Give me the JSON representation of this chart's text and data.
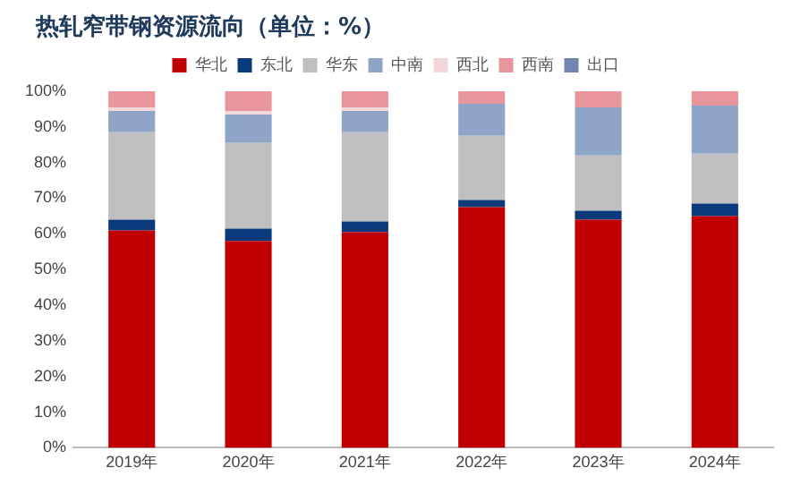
{
  "chart_data": {
    "type": "bar",
    "title": "热轧窄带钢资源流向（单位：%）",
    "categories": [
      "2019年",
      "2020年",
      "2021年",
      "2022年",
      "2023年",
      "2024年"
    ],
    "stacked": true,
    "legend": "top",
    "grid": false,
    "ylim": [
      0,
      100
    ],
    "yticks": [
      {
        "value": 0,
        "label": "0%"
      },
      {
        "value": 10,
        "label": "10%"
      },
      {
        "value": 20,
        "label": "20%"
      },
      {
        "value": 30,
        "label": "30%"
      },
      {
        "value": 40,
        "label": "40%"
      },
      {
        "value": 50,
        "label": "50%"
      },
      {
        "value": 60,
        "label": "60%"
      },
      {
        "value": 70,
        "label": "70%"
      },
      {
        "value": 80,
        "label": "80%"
      },
      {
        "value": 90,
        "label": "90%"
      },
      {
        "value": 100,
        "label": "100%"
      }
    ],
    "series": [
      {
        "name": "华北",
        "color": "#c00000",
        "values": [
          61,
          58,
          60.5,
          67.5,
          64,
          65
        ]
      },
      {
        "name": "东北",
        "color": "#0b3a7c",
        "values": [
          3,
          3.5,
          3,
          2,
          2.5,
          3.5
        ]
      },
      {
        "name": "华东",
        "color": "#bfbfbf",
        "values": [
          24.5,
          24,
          25,
          18,
          15.5,
          14
        ]
      },
      {
        "name": "中南",
        "color": "#8ea5c8",
        "values": [
          6,
          8,
          6,
          9,
          13.5,
          13.5
        ]
      },
      {
        "name": "西北",
        "color": "#f2d7da",
        "values": [
          1,
          1,
          1,
          0,
          0,
          0
        ]
      },
      {
        "name": "西南",
        "color": "#e8959e",
        "values": [
          4.5,
          5.5,
          4.5,
          3.5,
          4.5,
          4
        ]
      },
      {
        "name": "出口",
        "color": "#6f86b0",
        "values": [
          0,
          0,
          0,
          0,
          0,
          0
        ]
      }
    ]
  }
}
